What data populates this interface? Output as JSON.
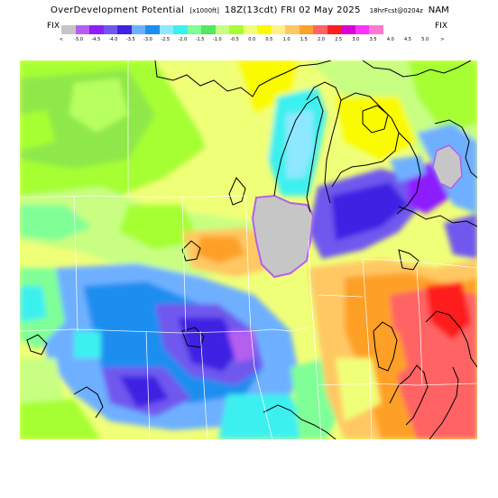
{
  "header": {
    "title": "OverDevelopment Potential",
    "units": "[x1000ft]",
    "valid": "18Z(13cdt) FRI 02 May 2025",
    "forecast": "18hrFcst@0204z",
    "model": "NAM"
  },
  "legend": {
    "left_label": "FIX",
    "right_label": "FIX",
    "colors": [
      "#c6c6c6",
      "#b45ff0",
      "#8d1dff",
      "#7058ee",
      "#3e23e3",
      "#6eb0ff",
      "#1c8ef0",
      "#8ee8ff",
      "#3cf0f0",
      "#80ff96",
      "#50e864",
      "#c8ff82",
      "#a6ff32",
      "#f0ff78",
      "#fafa00",
      "#fff08c",
      "#ffc864",
      "#ffa028",
      "#ff6464",
      "#ff1e1e",
      "#dc00dc",
      "#ff32ff",
      "#ff78d2"
    ],
    "tick_labels": [
      "<",
      "-5.0",
      "-4.5",
      "-4.0",
      "-3.5",
      "-3.0",
      "-2.5",
      "-2.0",
      "-1.5",
      "-1.0",
      "-0.5",
      "0.0",
      "0.5",
      "1.0",
      "1.5",
      "2.0",
      "2.5",
      "3.0",
      "3.5",
      "4.0",
      "4.5",
      "5.0",
      ">"
    ]
  }
}
